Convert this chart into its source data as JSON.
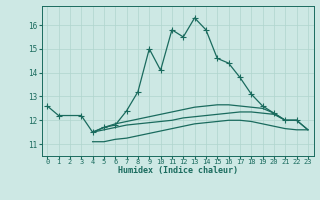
{
  "background_color": "#cde8e4",
  "line_color": "#1a6b5e",
  "grid_color": "#b0d5ce",
  "xlabel": "Humidex (Indice chaleur)",
  "ylim": [
    10.5,
    16.8
  ],
  "xlim": [
    -0.5,
    23.5
  ],
  "yticks": [
    11,
    12,
    13,
    14,
    15,
    16
  ],
  "xticks": [
    0,
    1,
    2,
    3,
    4,
    5,
    6,
    7,
    8,
    9,
    10,
    11,
    12,
    13,
    14,
    15,
    16,
    17,
    18,
    19,
    20,
    21,
    22,
    23
  ],
  "line1_x": [
    0,
    1,
    3,
    4,
    5,
    6,
    7,
    8,
    9,
    10,
    11,
    12,
    13,
    14,
    15,
    16,
    17,
    18,
    19,
    20,
    21,
    22
  ],
  "line1_y": [
    12.6,
    12.2,
    12.2,
    11.5,
    11.7,
    11.8,
    12.4,
    13.2,
    15.0,
    14.1,
    15.8,
    15.5,
    16.3,
    15.8,
    14.6,
    14.4,
    13.8,
    13.1,
    12.6,
    12.3,
    12.0,
    12.0
  ],
  "line2_x": [
    4,
    5,
    6,
    7,
    8,
    9,
    10,
    11,
    12,
    13,
    14,
    15,
    16,
    17,
    18,
    19,
    20,
    21,
    22,
    23
  ],
  "line2_y": [
    11.5,
    11.7,
    11.85,
    11.95,
    12.05,
    12.15,
    12.25,
    12.35,
    12.45,
    12.55,
    12.6,
    12.65,
    12.65,
    12.6,
    12.55,
    12.5,
    12.3,
    12.0,
    12.0,
    11.6
  ],
  "line3_x": [
    4,
    5,
    6,
    7,
    8,
    9,
    10,
    11,
    12,
    13,
    14,
    15,
    16,
    17,
    18,
    19,
    20,
    21,
    22,
    23
  ],
  "line3_y": [
    11.5,
    11.6,
    11.7,
    11.8,
    11.85,
    11.9,
    11.95,
    12.0,
    12.1,
    12.15,
    12.2,
    12.25,
    12.3,
    12.35,
    12.35,
    12.3,
    12.25,
    12.0,
    12.0,
    11.6
  ],
  "line4_x": [
    4,
    5,
    6,
    7,
    8,
    9,
    10,
    11,
    12,
    13,
    14,
    15,
    16,
    17,
    18,
    19,
    20,
    21,
    22,
    23
  ],
  "line4_y": [
    11.1,
    11.1,
    11.2,
    11.25,
    11.35,
    11.45,
    11.55,
    11.65,
    11.75,
    11.85,
    11.9,
    11.95,
    12.0,
    12.0,
    11.95,
    11.85,
    11.75,
    11.65,
    11.6,
    11.6
  ]
}
